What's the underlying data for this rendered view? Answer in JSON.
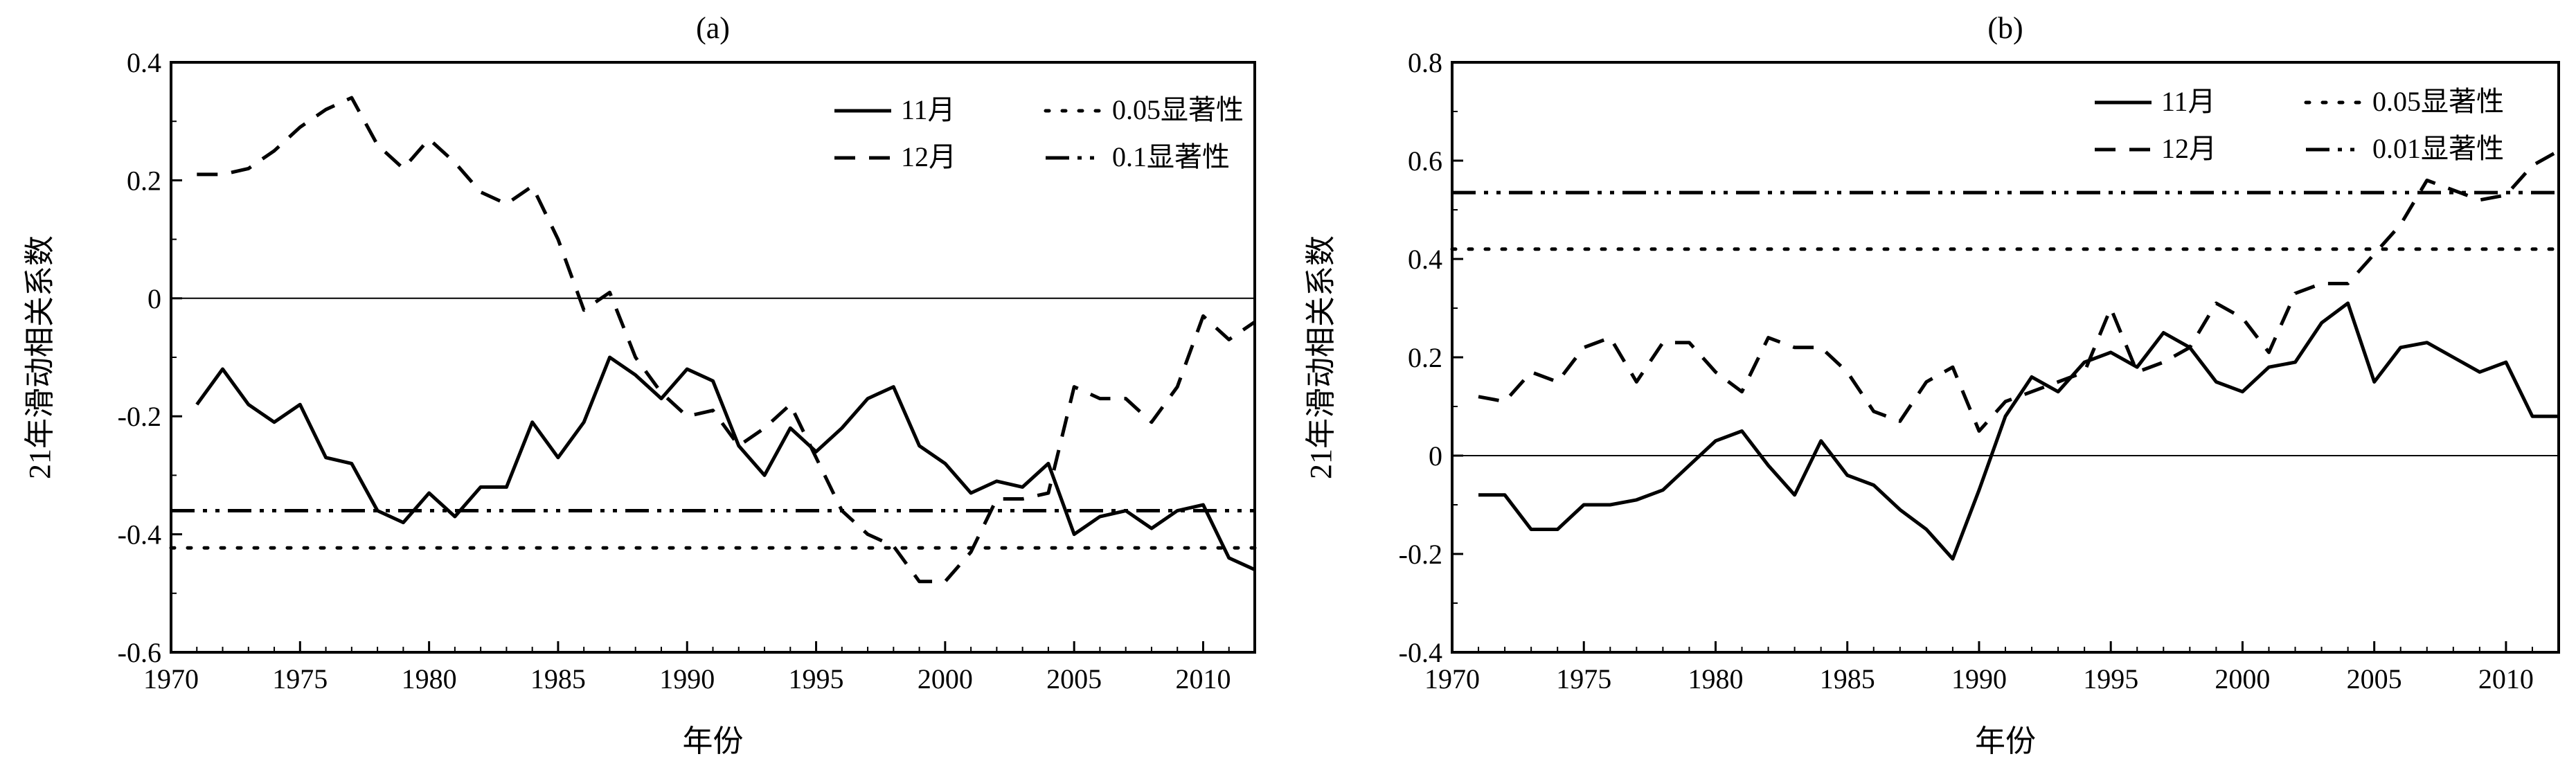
{
  "chart_data": [
    {
      "type": "line",
      "panel_label": "(a)",
      "xlabel": "年份",
      "ylabel": "21年滑动相关系数",
      "xlim": [
        1970,
        2012
      ],
      "ylim": [
        -0.6,
        0.4
      ],
      "xticks": [
        1970,
        1975,
        1980,
        1985,
        1990,
        1995,
        2000,
        2005,
        2010
      ],
      "yticks": [
        -0.6,
        -0.4,
        -0.2,
        0,
        0.2,
        0.4
      ],
      "ytick_labels": [
        "-0.6",
        "-0.4",
        "-0.2",
        "0",
        "0.2",
        "0.4"
      ],
      "grid": false,
      "legend_position": "top-right",
      "x": [
        1971,
        1972,
        1973,
        1974,
        1975,
        1976,
        1977,
        1978,
        1979,
        1980,
        1981,
        1982,
        1983,
        1984,
        1985,
        1986,
        1987,
        1988,
        1989,
        1990,
        1991,
        1992,
        1993,
        1994,
        1995,
        1996,
        1997,
        1998,
        1999,
        2000,
        2001,
        2002,
        2003,
        2004,
        2005,
        2006,
        2007,
        2008,
        2009,
        2010,
        2011,
        2012
      ],
      "series": [
        {
          "name": "11月",
          "style": "solid",
          "values": [
            -0.18,
            -0.12,
            -0.18,
            -0.21,
            -0.18,
            -0.27,
            -0.28,
            -0.36,
            -0.38,
            -0.33,
            -0.37,
            -0.32,
            -0.32,
            -0.21,
            -0.27,
            -0.21,
            -0.1,
            -0.13,
            -0.17,
            -0.12,
            -0.14,
            -0.25,
            -0.3,
            -0.22,
            -0.26,
            -0.22,
            -0.17,
            -0.15,
            -0.25,
            -0.28,
            -0.33,
            -0.31,
            -0.32,
            -0.28,
            -0.4,
            -0.37,
            -0.36,
            -0.39,
            -0.36,
            -0.35,
            -0.44,
            -0.46
          ]
        },
        {
          "name": "12月",
          "style": "dashed",
          "values": [
            0.21,
            0.21,
            0.22,
            0.25,
            0.29,
            0.32,
            0.34,
            0.26,
            0.22,
            0.27,
            0.23,
            0.18,
            0.16,
            0.19,
            0.1,
            -0.02,
            0.01,
            -0.1,
            -0.16,
            -0.2,
            -0.19,
            -0.25,
            -0.22,
            -0.18,
            -0.27,
            -0.36,
            -0.4,
            -0.42,
            -0.48,
            -0.48,
            -0.43,
            -0.34,
            -0.34,
            -0.33,
            -0.15,
            -0.17,
            -0.17,
            -0.21,
            -0.15,
            -0.03,
            -0.07,
            -0.04
          ]
        },
        {
          "name": "0.05显著性",
          "style": "dotted",
          "constant": -0.423
        },
        {
          "name": "0.1显著性",
          "style": "dashdotdot",
          "constant": -0.36
        },
        {
          "name": "",
          "style": "thin",
          "constant": 0
        }
      ]
    },
    {
      "type": "line",
      "panel_label": "(b)",
      "xlabel": "年份",
      "ylabel": "21年滑动相关系数",
      "xlim": [
        1970,
        2012
      ],
      "ylim": [
        -0.4,
        0.8
      ],
      "xticks": [
        1970,
        1975,
        1980,
        1985,
        1990,
        1995,
        2000,
        2005,
        2010
      ],
      "yticks": [
        -0.4,
        -0.2,
        0,
        0.2,
        0.4,
        0.6,
        0.8
      ],
      "ytick_labels": [
        "-0.4",
        "-0.2",
        "0",
        "0.2",
        "0.4",
        "0.6",
        "0.8"
      ],
      "grid": false,
      "legend_position": "top-right",
      "x": [
        1971,
        1972,
        1973,
        1974,
        1975,
        1976,
        1977,
        1978,
        1979,
        1980,
        1981,
        1982,
        1983,
        1984,
        1985,
        1986,
        1987,
        1988,
        1989,
        1990,
        1991,
        1992,
        1993,
        1994,
        1995,
        1996,
        1997,
        1998,
        1999,
        2000,
        2001,
        2002,
        2003,
        2004,
        2005,
        2006,
        2007,
        2008,
        2009,
        2010,
        2011,
        2012
      ],
      "series": [
        {
          "name": "11月",
          "style": "solid",
          "values": [
            -0.08,
            -0.08,
            -0.15,
            -0.15,
            -0.1,
            -0.1,
            -0.09,
            -0.07,
            -0.02,
            0.03,
            0.05,
            -0.02,
            -0.08,
            0.03,
            -0.04,
            -0.06,
            -0.11,
            -0.15,
            -0.21,
            -0.07,
            0.08,
            0.16,
            0.13,
            0.19,
            0.21,
            0.18,
            0.25,
            0.22,
            0.15,
            0.13,
            0.18,
            0.19,
            0.27,
            0.31,
            0.15,
            0.22,
            0.23,
            0.2,
            0.17,
            0.19,
            0.08,
            0.08
          ]
        },
        {
          "name": "12月",
          "style": "dashed",
          "values": [
            0.12,
            0.11,
            0.17,
            0.15,
            0.22,
            0.24,
            0.15,
            0.23,
            0.23,
            0.17,
            0.13,
            0.24,
            0.22,
            0.22,
            0.17,
            0.09,
            0.07,
            0.15,
            0.18,
            0.05,
            0.11,
            0.13,
            0.15,
            0.17,
            0.3,
            0.17,
            0.19,
            0.22,
            0.31,
            0.28,
            0.21,
            0.33,
            0.35,
            0.35,
            0.41,
            0.47,
            0.56,
            0.54,
            0.52,
            0.53,
            0.59,
            0.62
          ]
        },
        {
          "name": "0.05显著性",
          "style": "dotted",
          "constant": 0.42
        },
        {
          "name": "0.01显著性",
          "style": "dashdotdot",
          "constant": 0.535
        },
        {
          "name": "",
          "style": "thin",
          "constant": 0
        }
      ]
    }
  ]
}
